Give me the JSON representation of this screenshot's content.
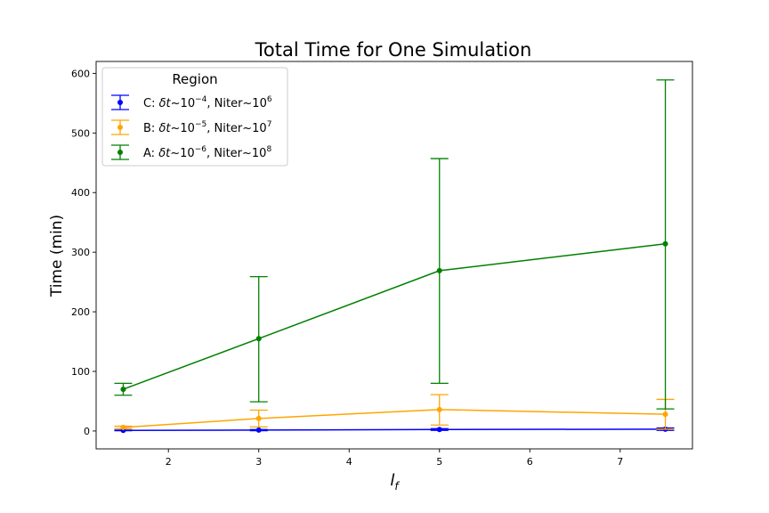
{
  "chart_data": {
    "type": "line",
    "title": "Total Time for One Simulation",
    "xlabel": "l",
    "xlabel_sub": "f",
    "ylabel": "Time (min)",
    "xlim": [
      1.2,
      7.8
    ],
    "ylim": [
      -30,
      620
    ],
    "xticks": [
      2,
      3,
      4,
      5,
      6,
      7
    ],
    "yticks": [
      0,
      100,
      200,
      300,
      400,
      500,
      600
    ],
    "grid": false,
    "legend": {
      "title": "Region",
      "placement": "upper-left"
    },
    "x": [
      1.5,
      3,
      5,
      7.5
    ],
    "series": [
      {
        "name": "C: δt~10^-4, Niter~10^6",
        "legend_parts": {
          "prefix": "C: ",
          "var": "δt",
          "mid": "~10",
          "exp1": "−4",
          "tail": ", Niter~10",
          "exp2": "6"
        },
        "color": "#0000ff",
        "values": [
          1,
          1.5,
          2.5,
          3
        ],
        "err_low": [
          0.5,
          1,
          1.5,
          2
        ],
        "err_high": [
          0.5,
          1,
          1.5,
          2
        ]
      },
      {
        "name": "B: δt~10^-5, Niter~10^7",
        "legend_parts": {
          "prefix": "B: ",
          "var": "δt",
          "mid": "~10",
          "exp1": "−5",
          "tail": ", Niter~10",
          "exp2": "7"
        },
        "color": "#ffa500",
        "values": [
          6,
          21,
          36,
          28
        ],
        "err_low": [
          2,
          14,
          26,
          25
        ],
        "err_high": [
          2,
          14,
          25,
          25
        ]
      },
      {
        "name": "A: δt~10^-6, Niter~10^8",
        "legend_parts": {
          "prefix": "A: ",
          "var": "δt",
          "mid": "~10",
          "exp1": "−6",
          "tail": ", Niter~10",
          "exp2": "8"
        },
        "color": "#008000",
        "values": [
          70,
          155,
          269,
          314
        ],
        "err_low": [
          10,
          106,
          189,
          277
        ],
        "err_high": [
          10,
          104,
          188,
          275
        ]
      }
    ]
  }
}
